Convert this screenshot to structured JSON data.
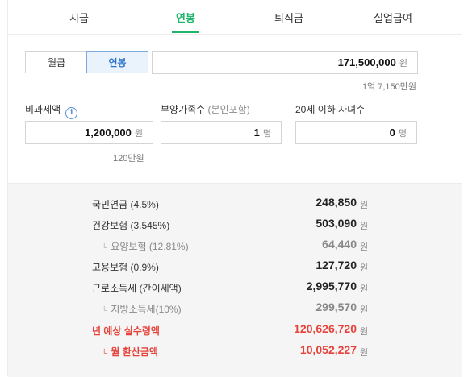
{
  "tabs": [
    {
      "label": "시급",
      "active": false
    },
    {
      "label": "연봉",
      "active": true
    },
    {
      "label": "퇴직금",
      "active": false
    },
    {
      "label": "실업급여",
      "active": false
    }
  ],
  "pay_toggle": {
    "monthly_label": "월급",
    "annual_label": "연봉",
    "selected": "연봉"
  },
  "salary": {
    "value": "171,500,000",
    "unit": "원",
    "korean": "1억 7,150만원"
  },
  "nontaxable": {
    "label": "비과세액",
    "value": "1,200,000",
    "unit": "원",
    "korean": "120만원"
  },
  "dependents": {
    "label": "부양가족수",
    "label_note": "(본인포함)",
    "value": "1",
    "unit": "명"
  },
  "children": {
    "label": "20세 이하 자녀수",
    "value": "0",
    "unit": "명"
  },
  "results": [
    {
      "name": "국민연금 (4.5%)",
      "amount": "248,850",
      "unit": "원",
      "style": "normal"
    },
    {
      "name": "건강보험 (3.545%)",
      "amount": "503,090",
      "unit": "원",
      "style": "normal"
    },
    {
      "name": "요양보험 (12.81%)",
      "amount": "64,440",
      "unit": "원",
      "style": "sub"
    },
    {
      "name": "고용보험 (0.9%)",
      "amount": "127,720",
      "unit": "원",
      "style": "normal"
    },
    {
      "name": "근로소득세 (간이세액)",
      "amount": "2,995,770",
      "unit": "원",
      "style": "normal"
    },
    {
      "name": "지방소득세(10%)",
      "amount": "299,570",
      "unit": "원",
      "style": "sub"
    },
    {
      "name": "년 예상 실수령액",
      "amount": "120,626,720",
      "unit": "원",
      "style": "red"
    },
    {
      "name": "월 환산금액",
      "amount": "10,052,227",
      "unit": "원",
      "style": "red-sub"
    }
  ],
  "colors": {
    "accent_green": "#20b56a",
    "accent_blue": "#2a73c9",
    "highlight_red": "#e5433a"
  },
  "icons": {
    "info": "info-icon",
    "sub_hook": "corner-hook-icon"
  }
}
